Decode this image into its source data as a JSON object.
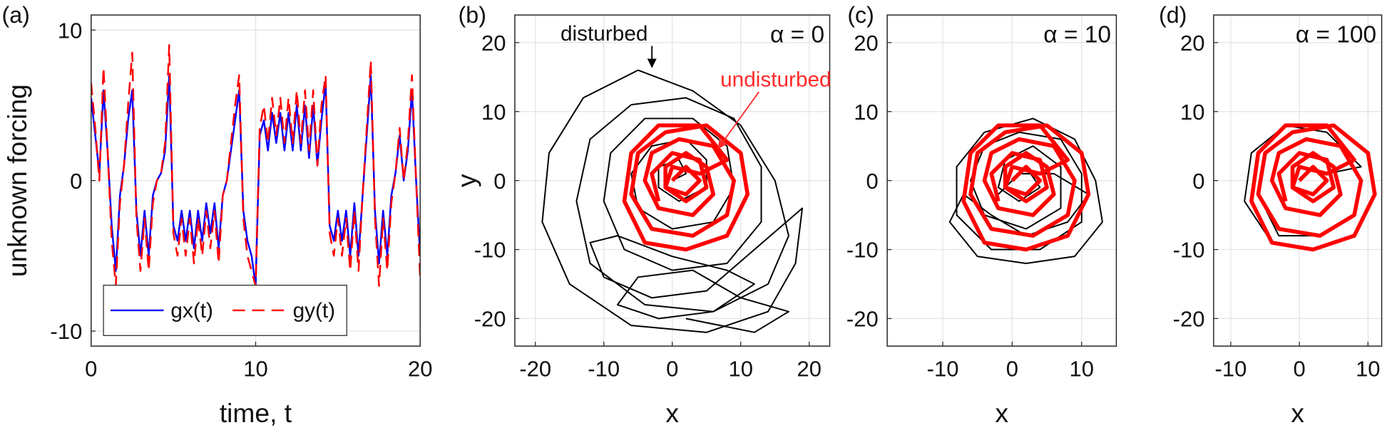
{
  "chart_data": [
    {
      "type": "line",
      "panel_label": "(a)",
      "xlabel": "time, t",
      "ylabel": "unknown forcing",
      "xlim": [
        0,
        20
      ],
      "ylim": [
        -11,
        11
      ],
      "xticks": [
        0,
        10,
        20
      ],
      "yticks": [
        -10,
        0,
        10
      ],
      "grid": true,
      "legend": "lower left",
      "x": [
        0,
        0.25,
        0.5,
        0.75,
        1,
        1.25,
        1.5,
        1.75,
        2,
        2.25,
        2.5,
        2.75,
        3,
        3.25,
        3.5,
        3.75,
        4,
        4.25,
        4.5,
        4.75,
        5,
        5.25,
        5.5,
        5.75,
        6,
        6.25,
        6.5,
        6.75,
        7,
        7.25,
        7.5,
        7.75,
        8,
        8.25,
        8.5,
        8.75,
        9,
        9.25,
        9.5,
        9.75,
        10,
        10.25,
        10.5,
        10.75,
        11,
        11.25,
        11.5,
        11.75,
        12,
        12.25,
        12.5,
        12.75,
        13,
        13.25,
        13.5,
        13.75,
        14,
        14.25,
        14.5,
        14.75,
        15,
        15.25,
        15.5,
        15.75,
        16,
        16.25,
        16.5,
        16.75,
        17,
        17.25,
        17.5,
        17.75,
        18,
        18.25,
        18.5,
        18.75,
        19,
        19.25,
        19.5,
        19.75,
        20
      ],
      "series": [
        {
          "name": "gx(t)",
          "color": "#0000ff",
          "dash": false,
          "values": [
            5.5,
            3,
            0.5,
            6,
            2,
            -3,
            -6,
            -1,
            1,
            4,
            6,
            -2,
            -5,
            -2,
            -5,
            -1,
            0,
            0.5,
            2,
            7,
            -3,
            -4,
            -2,
            -4,
            -2,
            -4.5,
            -2,
            -4,
            -1.5,
            -3.5,
            -1.5,
            -4.5,
            -1,
            0,
            2,
            4,
            6,
            -2,
            -4,
            -5,
            -7,
            3,
            4,
            2,
            4.5,
            2.5,
            4.5,
            2,
            4.5,
            2,
            5,
            2,
            5,
            1.5,
            5,
            1,
            4,
            6.5,
            -3,
            -4,
            -2,
            -4,
            -2,
            -5,
            -1.5,
            -5,
            -1,
            3,
            7,
            -2,
            -5.5,
            -2,
            -5,
            -1,
            0.5,
            3,
            0,
            2,
            6,
            0,
            -5
          ]
        },
        {
          "name": "gy(t)",
          "color": "#ff0000",
          "dash": true,
          "values": [
            6.5,
            3.5,
            0,
            7.5,
            2,
            -4,
            -7,
            -1.5,
            1,
            5,
            8.5,
            -2.5,
            -6,
            -2.5,
            -6,
            -1.5,
            0,
            0.5,
            2.5,
            9,
            -3.5,
            -5,
            -2.5,
            -5,
            -2.5,
            -5.5,
            -2.5,
            -5,
            -2,
            -4.5,
            -2,
            -5.5,
            -1,
            0,
            2.5,
            5,
            7,
            -2.5,
            -5,
            -6,
            -7,
            3.5,
            5,
            2.5,
            5.5,
            3,
            5.5,
            2.5,
            5.5,
            2.5,
            6,
            2.5,
            6,
            2,
            6,
            1,
            5,
            7,
            -3.5,
            -5,
            -2.5,
            -5,
            -2.5,
            -6,
            -2,
            -6,
            -1,
            3.5,
            8,
            -2.5,
            -7,
            -2.5,
            -6,
            -1.5,
            0.5,
            3.5,
            0,
            2.5,
            7,
            0,
            -6.5
          ]
        }
      ]
    },
    {
      "type": "line",
      "panel_label": "(b)",
      "title": "α = 0",
      "xlabel": "x",
      "ylabel": "y",
      "xlim": [
        -23,
        23
      ],
      "ylim": [
        -24,
        24
      ],
      "xticks": [
        -20,
        -10,
        0,
        10,
        20
      ],
      "yticks": [
        -20,
        -10,
        0,
        10,
        20
      ],
      "grid": true,
      "series": [
        {
          "name": "disturbed",
          "color": "#000000",
          "x": [
            0,
            2,
            1,
            -2,
            -2,
            1,
            5,
            5,
            2,
            -3,
            -6,
            -5,
            0,
            6,
            9,
            8,
            3,
            -4,
            -9,
            -10,
            -7,
            0,
            8,
            13,
            13,
            9,
            2,
            -6,
            -12,
            -14,
            -12,
            -4,
            6,
            14,
            17,
            15,
            10,
            3,
            -5,
            -13,
            -18,
            -19,
            -15,
            -6,
            5,
            14,
            18,
            19,
            12,
            5,
            -3,
            -10,
            -12,
            -8,
            0,
            8,
            12,
            6,
            -2,
            -8,
            -5,
            3,
            10,
            17,
            12,
            2
          ],
          "values": [
            0,
            1,
            3,
            2,
            -1,
            -3,
            -1,
            3,
            6,
            5,
            1,
            -4,
            -7,
            -6,
            -1,
            5,
            9,
            9,
            4,
            -3,
            -10,
            -13,
            -12,
            -6,
            2,
            9,
            12,
            11,
            6,
            -3,
            -12,
            -18,
            -19,
            -15,
            -8,
            0,
            8,
            13,
            16,
            12,
            4,
            -6,
            -15,
            -21,
            -22,
            -19,
            -12,
            -4,
            -10,
            -16,
            -17,
            -14,
            -9,
            -8,
            -11,
            -13,
            -15,
            -19,
            -20,
            -18,
            -14,
            -13,
            -17,
            -19,
            -22,
            -20
          ]
        },
        {
          "name": "undisturbed",
          "color": "#ff0000",
          "x": [
            0,
            2,
            4,
            2,
            -1,
            -1,
            2,
            5,
            6,
            3,
            -2,
            -4,
            -3,
            1,
            6,
            9,
            8,
            3,
            -3,
            -6,
            -5,
            -1,
            5,
            10,
            11,
            8,
            2,
            -4,
            -7,
            -6,
            -2,
            4,
            8,
            4,
            0,
            -1,
            2,
            5,
            4,
            0,
            -3,
            -2
          ],
          "values": [
            0,
            2,
            0,
            -2,
            -1,
            2,
            4,
            2,
            -2,
            -5,
            -4,
            0,
            4,
            6,
            5,
            0,
            -5,
            -8,
            -7,
            -2,
            4,
            7,
            8,
            4,
            -2,
            -8,
            -10,
            -9,
            -3,
            4,
            8,
            8,
            3,
            1,
            2,
            -1,
            -3,
            -1,
            3,
            4,
            1,
            -3
          ]
        }
      ]
    },
    {
      "type": "line",
      "panel_label": "(c)",
      "title": "α = 10",
      "xlabel": "x",
      "xlim": [
        -18,
        15
      ],
      "ylim": [
        -24,
        24
      ],
      "xticks": [
        -10,
        0,
        10
      ],
      "yticks": [
        -20,
        -10,
        0,
        10,
        20
      ],
      "grid": true,
      "series": [
        {
          "color": "#000000",
          "x": [
            0,
            2,
            4,
            1,
            -2,
            -1,
            3,
            7,
            7,
            2,
            -4,
            -6,
            -4,
            1,
            7,
            10,
            10,
            4,
            -3,
            -8,
            -8,
            -4,
            3,
            9,
            12,
            13,
            9,
            2,
            -5,
            -9,
            -7,
            -3,
            2,
            8,
            11,
            6,
            1,
            -2
          ],
          "values": [
            0,
            2,
            -1,
            -3,
            -1,
            3,
            5,
            2,
            -4,
            -7,
            -5,
            0,
            5,
            7,
            6,
            1,
            -6,
            -10,
            -10,
            -5,
            2,
            7,
            9,
            6,
            0,
            -6,
            -11,
            -12,
            -11,
            -6,
            -2,
            -5,
            -8,
            -6,
            -2,
            1,
            1,
            -2
          ]
        },
        {
          "color": "#ff0000",
          "x": [
            0,
            2,
            4,
            2,
            -1,
            -1,
            2,
            5,
            6,
            3,
            -2,
            -4,
            -3,
            1,
            6,
            9,
            8,
            3,
            -3,
            -6,
            -5,
            -1,
            5,
            10,
            11,
            8,
            2,
            -4,
            -7,
            -6,
            -2,
            4,
            8,
            4,
            0,
            -1,
            2,
            5,
            4,
            0,
            -3,
            -2
          ],
          "values": [
            0,
            2,
            0,
            -2,
            -1,
            2,
            4,
            2,
            -2,
            -5,
            -4,
            0,
            4,
            6,
            5,
            0,
            -5,
            -8,
            -7,
            -2,
            4,
            7,
            8,
            4,
            -2,
            -8,
            -10,
            -9,
            -3,
            4,
            8,
            8,
            3,
            1,
            2,
            -1,
            -3,
            -1,
            3,
            4,
            1,
            -3
          ]
        }
      ]
    },
    {
      "type": "line",
      "panel_label": "(d)",
      "title": "α = 100",
      "xlabel": "x",
      "xlim": [
        -12.5,
        12
      ],
      "ylim": [
        -24,
        24
      ],
      "xticks": [
        -10,
        0,
        10
      ],
      "yticks": [
        -20,
        -10,
        0,
        10,
        20
      ],
      "grid": true,
      "series": [
        {
          "color": "#000000",
          "x": [
            0,
            2,
            4,
            2,
            -1,
            -1,
            2,
            5,
            6,
            3,
            -2,
            -4,
            -3,
            1,
            6,
            9,
            8,
            3,
            -3,
            -6,
            -5,
            -1,
            5,
            10,
            11,
            8,
            2,
            -4,
            -8,
            -7,
            -2,
            4,
            9,
            4,
            0
          ],
          "values": [
            0,
            2,
            0,
            -2,
            -1,
            2,
            4,
            2,
            -2,
            -5,
            -4,
            0,
            4,
            6,
            5,
            0,
            -5,
            -8,
            -8,
            -2,
            4,
            7,
            8,
            4,
            -2,
            -8,
            -10,
            -9,
            -3,
            4,
            8,
            7,
            2,
            1,
            2
          ]
        },
        {
          "color": "#ff0000",
          "x": [
            0,
            2,
            4,
            2,
            -1,
            -1,
            2,
            5,
            6,
            3,
            -2,
            -4,
            -3,
            1,
            6,
            9,
            8,
            3,
            -3,
            -6,
            -5,
            -1,
            5,
            10,
            11,
            8,
            2,
            -4,
            -7,
            -6,
            -2,
            4,
            8,
            4,
            0,
            -1,
            2,
            5,
            4,
            0,
            -3,
            -2
          ],
          "values": [
            0,
            2,
            0,
            -2,
            -1,
            2,
            4,
            2,
            -2,
            -5,
            -4,
            0,
            4,
            6,
            5,
            0,
            -5,
            -8,
            -7,
            -2,
            4,
            7,
            8,
            4,
            -2,
            -8,
            -10,
            -9,
            -3,
            4,
            8,
            8,
            3,
            1,
            2,
            -1,
            -3,
            -1,
            3,
            4,
            1,
            -3
          ]
        }
      ]
    }
  ]
}
